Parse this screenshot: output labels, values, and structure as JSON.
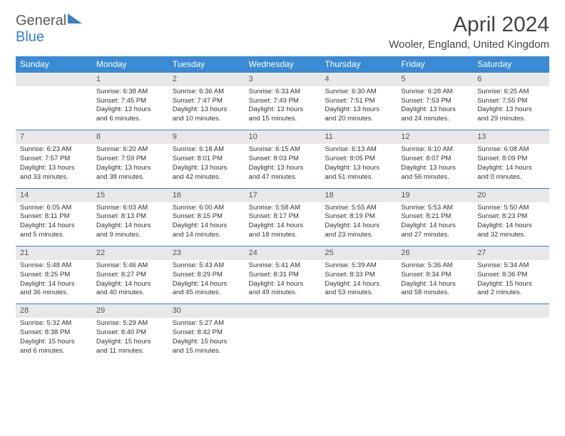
{
  "logo": {
    "word1": "General",
    "word2": "Blue"
  },
  "title": {
    "month_year": "April 2024",
    "location": "Wooler, England, United Kingdom"
  },
  "days_of_week": [
    "Sunday",
    "Monday",
    "Tuesday",
    "Wednesday",
    "Thursday",
    "Friday",
    "Saturday"
  ],
  "colors": {
    "header_bg": "#3b8bd4",
    "header_text": "#ffffff",
    "week_divider": "#3b7fc4",
    "daynum_bg": "#e8e8e8",
    "text": "#333333",
    "logo_gray": "#5a5a5a",
    "logo_blue": "#3b7fc4"
  },
  "weeks": [
    [
      null,
      {
        "n": "1",
        "sr": "6:38 AM",
        "ss": "7:45 PM",
        "dl": "13 hours and 6 minutes."
      },
      {
        "n": "2",
        "sr": "6:36 AM",
        "ss": "7:47 PM",
        "dl": "13 hours and 10 minutes."
      },
      {
        "n": "3",
        "sr": "6:33 AM",
        "ss": "7:49 PM",
        "dl": "13 hours and 15 minutes."
      },
      {
        "n": "4",
        "sr": "6:30 AM",
        "ss": "7:51 PM",
        "dl": "13 hours and 20 minutes."
      },
      {
        "n": "5",
        "sr": "6:28 AM",
        "ss": "7:53 PM",
        "dl": "13 hours and 24 minutes."
      },
      {
        "n": "6",
        "sr": "6:25 AM",
        "ss": "7:55 PM",
        "dl": "13 hours and 29 minutes."
      }
    ],
    [
      {
        "n": "7",
        "sr": "6:23 AM",
        "ss": "7:57 PM",
        "dl": "13 hours and 33 minutes."
      },
      {
        "n": "8",
        "sr": "6:20 AM",
        "ss": "7:59 PM",
        "dl": "13 hours and 38 minutes."
      },
      {
        "n": "9",
        "sr": "6:18 AM",
        "ss": "8:01 PM",
        "dl": "13 hours and 42 minutes."
      },
      {
        "n": "10",
        "sr": "6:15 AM",
        "ss": "8:03 PM",
        "dl": "13 hours and 47 minutes."
      },
      {
        "n": "11",
        "sr": "6:13 AM",
        "ss": "8:05 PM",
        "dl": "13 hours and 51 minutes."
      },
      {
        "n": "12",
        "sr": "6:10 AM",
        "ss": "8:07 PM",
        "dl": "13 hours and 56 minutes."
      },
      {
        "n": "13",
        "sr": "6:08 AM",
        "ss": "8:09 PM",
        "dl": "14 hours and 0 minutes."
      }
    ],
    [
      {
        "n": "14",
        "sr": "6:05 AM",
        "ss": "8:11 PM",
        "dl": "14 hours and 5 minutes."
      },
      {
        "n": "15",
        "sr": "6:03 AM",
        "ss": "8:13 PM",
        "dl": "14 hours and 9 minutes."
      },
      {
        "n": "16",
        "sr": "6:00 AM",
        "ss": "8:15 PM",
        "dl": "14 hours and 14 minutes."
      },
      {
        "n": "17",
        "sr": "5:58 AM",
        "ss": "8:17 PM",
        "dl": "14 hours and 18 minutes."
      },
      {
        "n": "18",
        "sr": "5:55 AM",
        "ss": "8:19 PM",
        "dl": "14 hours and 23 minutes."
      },
      {
        "n": "19",
        "sr": "5:53 AM",
        "ss": "8:21 PM",
        "dl": "14 hours and 27 minutes."
      },
      {
        "n": "20",
        "sr": "5:50 AM",
        "ss": "8:23 PM",
        "dl": "14 hours and 32 minutes."
      }
    ],
    [
      {
        "n": "21",
        "sr": "5:48 AM",
        "ss": "8:25 PM",
        "dl": "14 hours and 36 minutes."
      },
      {
        "n": "22",
        "sr": "5:46 AM",
        "ss": "8:27 PM",
        "dl": "14 hours and 40 minutes."
      },
      {
        "n": "23",
        "sr": "5:43 AM",
        "ss": "8:29 PM",
        "dl": "14 hours and 45 minutes."
      },
      {
        "n": "24",
        "sr": "5:41 AM",
        "ss": "8:31 PM",
        "dl": "14 hours and 49 minutes."
      },
      {
        "n": "25",
        "sr": "5:39 AM",
        "ss": "8:33 PM",
        "dl": "14 hours and 53 minutes."
      },
      {
        "n": "26",
        "sr": "5:36 AM",
        "ss": "8:34 PM",
        "dl": "14 hours and 58 minutes."
      },
      {
        "n": "27",
        "sr": "5:34 AM",
        "ss": "8:36 PM",
        "dl": "15 hours and 2 minutes."
      }
    ],
    [
      {
        "n": "28",
        "sr": "5:32 AM",
        "ss": "8:38 PM",
        "dl": "15 hours and 6 minutes."
      },
      {
        "n": "29",
        "sr": "5:29 AM",
        "ss": "8:40 PM",
        "dl": "15 hours and 11 minutes."
      },
      {
        "n": "30",
        "sr": "5:27 AM",
        "ss": "8:42 PM",
        "dl": "15 hours and 15 minutes."
      },
      null,
      null,
      null,
      null
    ]
  ],
  "labels": {
    "sunrise": "Sunrise:",
    "sunset": "Sunset:",
    "daylight": "Daylight:"
  }
}
